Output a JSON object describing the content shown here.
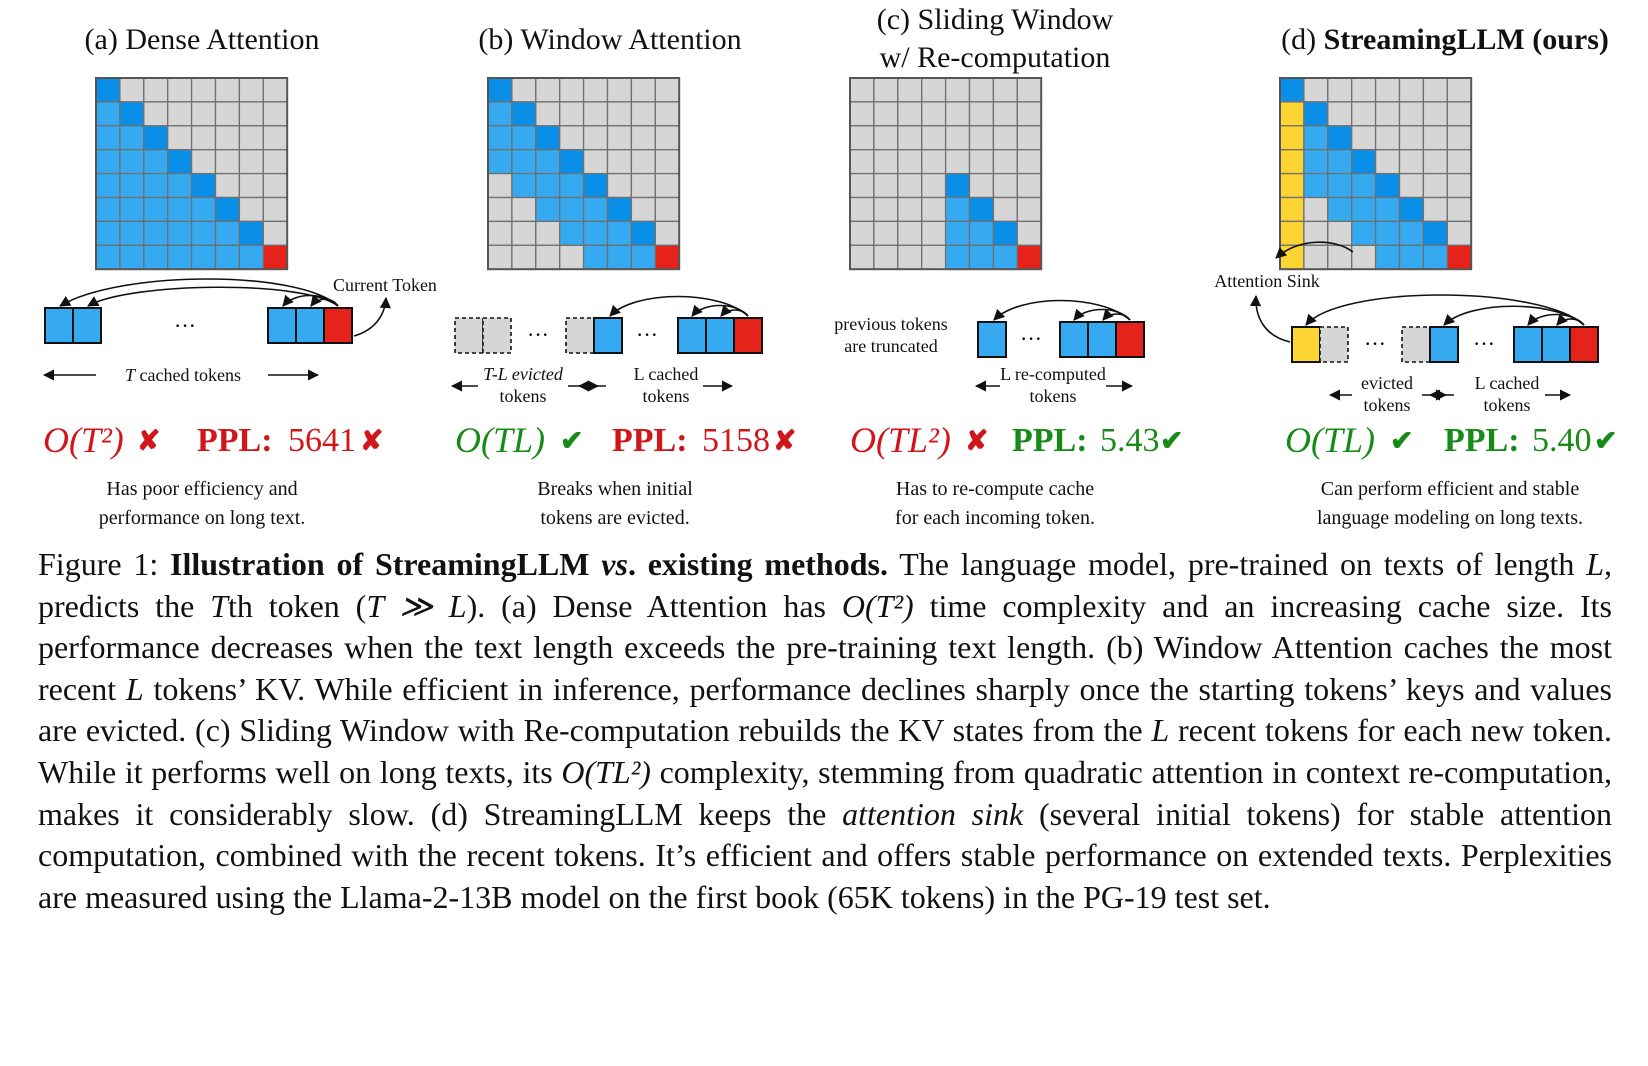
{
  "colors": {
    "blue": "#36aaf0",
    "blue_dark": "#0a8fe8",
    "gray": "#d6d6d6",
    "red": "#e5231b",
    "yellow": "#fcd434",
    "text_red": "#d0161a",
    "text_green": "#188a18"
  },
  "panels": [
    {
      "title": "(a) Dense Attention",
      "current_token_label": "Current Token",
      "cache_label": "cached tokens",
      "cache_var": "T",
      "complexity": "O(T²)",
      "complexity_mark": "✘",
      "ppl_label": "PPL:",
      "ppl_value": "5641",
      "ppl_mark": "✘",
      "desc_line1": "Has poor efficiency and",
      "desc_line2": "performance on long text."
    },
    {
      "title": "(b) Window Attention",
      "evicted_label_1": "T-L evicted",
      "evicted_label_2": "tokens",
      "cached_label_1": "L cached",
      "cached_label_2": "tokens",
      "complexity": "O(TL)",
      "complexity_mark": "✔",
      "ppl_label": "PPL:",
      "ppl_value": "5158",
      "ppl_mark": "✘",
      "desc_line1": "Breaks when initial",
      "desc_line2": "tokens are evicted."
    },
    {
      "title_line1": "(c) Sliding Window",
      "title_line2": "w/ Re-computation",
      "truncated_label_1": "previous tokens",
      "truncated_label_2": "are truncated",
      "recomputed_label_1": "L re-computed",
      "recomputed_label_2": "tokens",
      "complexity": "O(TL²)",
      "complexity_mark": "✘",
      "ppl_label": "PPL:",
      "ppl_value": "5.43",
      "ppl_mark": "✔",
      "desc_line1": "Has to re-compute cache",
      "desc_line2": "for each incoming token."
    },
    {
      "title_prefix": "(d) ",
      "title_bold": "StreamingLLM (ours)",
      "sink_label": "Attention Sink",
      "evicted_label_1": "evicted",
      "evicted_label_2": "tokens",
      "cached_label_1": "L cached",
      "cached_label_2": "tokens",
      "complexity": "O(TL)",
      "complexity_mark": "✔",
      "ppl_label": "PPL:",
      "ppl_value": "5.40",
      "ppl_mark": "✔",
      "desc_line1": "Can perform efficient and stable",
      "desc_line2": "language modeling on long texts."
    }
  ],
  "ellipsis": "···",
  "caption": {
    "prefix": "Figure 1: ",
    "bold_1": "Illustration of StreamingLLM ",
    "bold_italic": "vs",
    "bold_2": ". existing methods.",
    "seg1": " The language model, pre-trained on texts of length ",
    "var_L1": "L",
    "seg2": ", predicts the ",
    "var_T1": "T",
    "seg3": "th token (",
    "var_TggL": "T ≫ L",
    "seg4": "). (a) Dense Attention has ",
    "var_OT2": "O(T²)",
    "seg5": " time complexity and an increasing cache size. Its performance decreases when the text length exceeds the pre-training text length. (b) Window Attention caches the most recent ",
    "var_L2": "L",
    "seg6": " tokens’ KV. While efficient in inference, performance declines sharply once the starting tokens’ keys and values are evicted. (c) Sliding Window with Re-computation rebuilds the KV states from the ",
    "var_L3": "L",
    "seg7": " recent tokens for each new token. While it performs well on long texts, its ",
    "var_OTL2": "O(TL²)",
    "seg8": " complexity, stemming from quadratic attention in context re-computation, makes it considerably slow. (d) StreamingLLM keeps the ",
    "italic_sink": "attention sink",
    "seg9": " (several initial tokens) for stable attention computation, combined with the recent tokens. It’s efficient and offers stable performance on extended texts. Perplexities are measured using the Llama-2-13B model on the first book (65K tokens) in the PG-19 test set."
  }
}
